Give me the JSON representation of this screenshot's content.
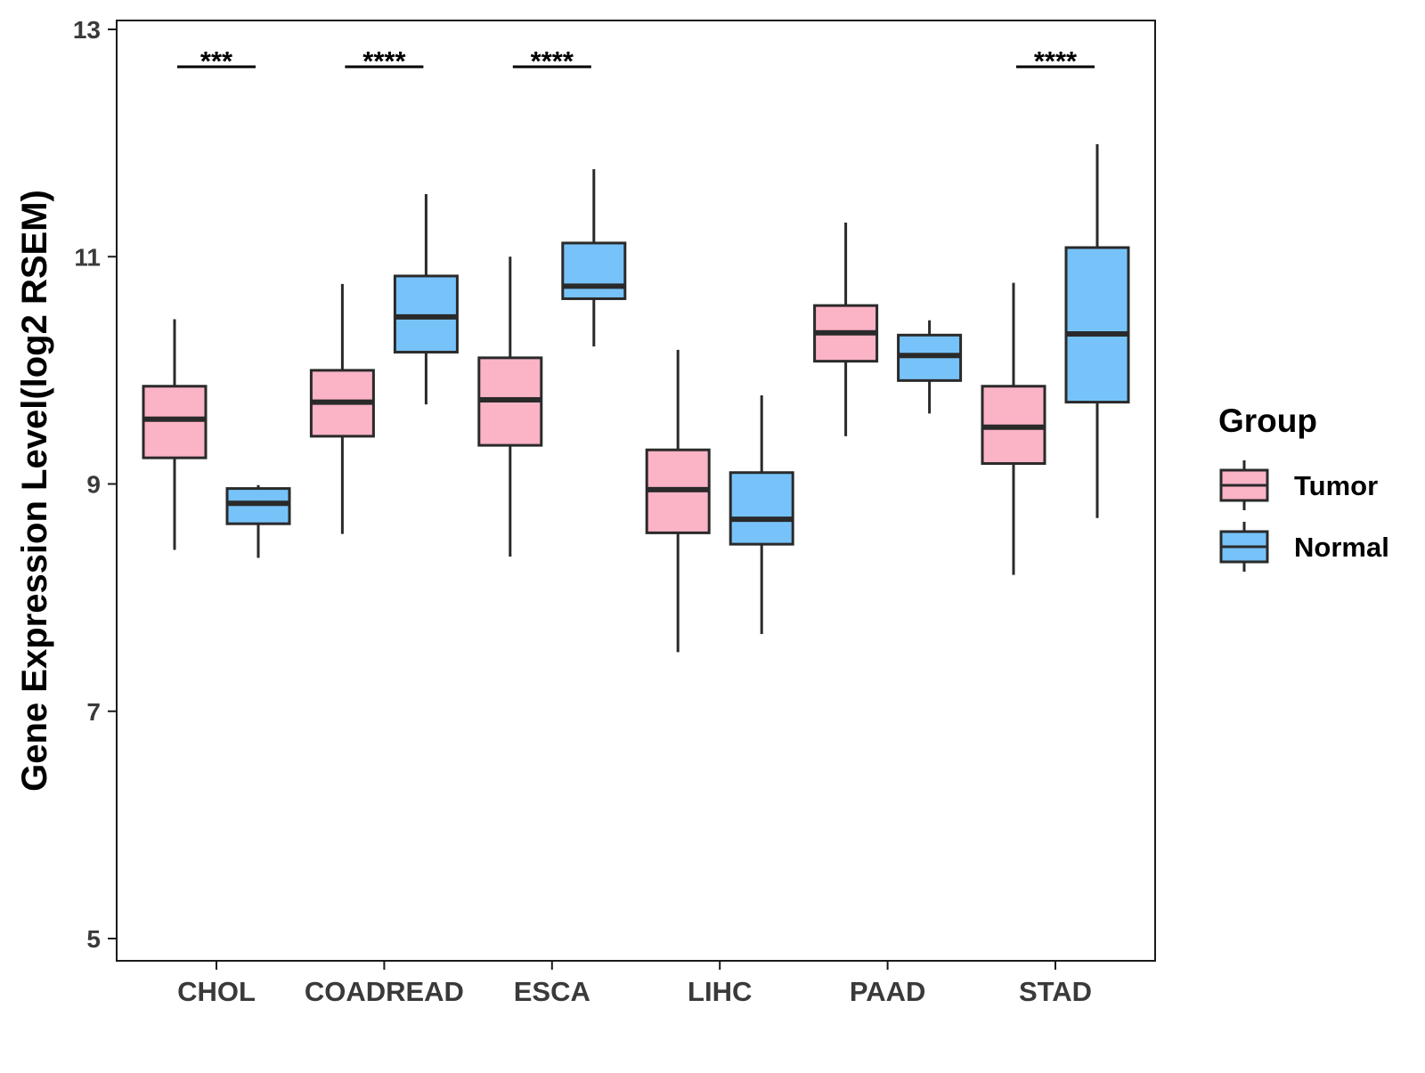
{
  "chart_data": {
    "type": "boxplot",
    "title": "",
    "xlabel": "",
    "ylabel": "Gene Expression Level(log2 RSEM)",
    "ylim": [
      4.8,
      13.2
    ],
    "yticks": [
      5,
      7,
      9,
      11,
      13
    ],
    "categories": [
      "CHOL",
      "COADREAD",
      "ESCA",
      "LIHC",
      "PAAD",
      "STAD"
    ],
    "legend": {
      "title": "Group",
      "position": "right",
      "entries": [
        {
          "name": "Tumor",
          "color": "#FBB3C6"
        },
        {
          "name": "Normal",
          "color": "#77C3F9"
        }
      ]
    },
    "series": [
      {
        "name": "Tumor",
        "color": "#FBB3C6",
        "boxes": [
          {
            "min": 8.42,
            "q1": 9.23,
            "median": 9.57,
            "q3": 9.86,
            "max": 10.45
          },
          {
            "min": 8.56,
            "q1": 9.42,
            "median": 9.72,
            "q3": 10.0,
            "max": 10.76
          },
          {
            "min": 8.36,
            "q1": 9.34,
            "median": 9.74,
            "q3": 10.11,
            "max": 11.0
          },
          {
            "min": 7.52,
            "q1": 8.57,
            "median": 8.95,
            "q3": 9.3,
            "max": 10.18
          },
          {
            "min": 9.42,
            "q1": 10.08,
            "median": 10.33,
            "q3": 10.57,
            "max": 11.3
          },
          {
            "min": 8.2,
            "q1": 9.18,
            "median": 9.5,
            "q3": 9.86,
            "max": 10.77
          }
        ]
      },
      {
        "name": "Normal",
        "color": "#77C3F9",
        "boxes": [
          {
            "min": 8.35,
            "q1": 8.65,
            "median": 8.83,
            "q3": 8.96,
            "max": 8.99
          },
          {
            "min": 9.7,
            "q1": 10.16,
            "median": 10.47,
            "q3": 10.83,
            "max": 11.55
          },
          {
            "min": 10.21,
            "q1": 10.63,
            "median": 10.74,
            "q3": 11.12,
            "max": 11.77
          },
          {
            "min": 7.68,
            "q1": 8.47,
            "median": 8.69,
            "q3": 9.1,
            "max": 9.78
          },
          {
            "min": 9.62,
            "q1": 9.91,
            "median": 10.13,
            "q3": 10.31,
            "max": 10.44
          },
          {
            "min": 8.7,
            "q1": 9.72,
            "median": 10.32,
            "q3": 11.08,
            "max": 11.99
          }
        ]
      }
    ],
    "significance": [
      {
        "category": "CHOL",
        "label": "***"
      },
      {
        "category": "COADREAD",
        "label": "****"
      },
      {
        "category": "ESCA",
        "label": "****"
      },
      {
        "category": "STAD",
        "label": "****"
      }
    ]
  }
}
